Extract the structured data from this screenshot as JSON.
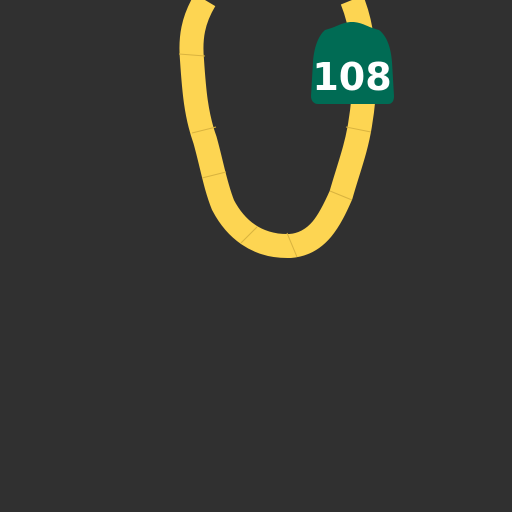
{
  "map": {
    "background_color": "#303030",
    "road": {
      "type": "highway",
      "color": "#fdd552",
      "segment_seam_color": "#d9b33f"
    },
    "route_shield": {
      "icon": "california-state-route-shield-icon",
      "number": "108",
      "fill_color": "#006b54",
      "text_color": "#ffffff"
    }
  }
}
